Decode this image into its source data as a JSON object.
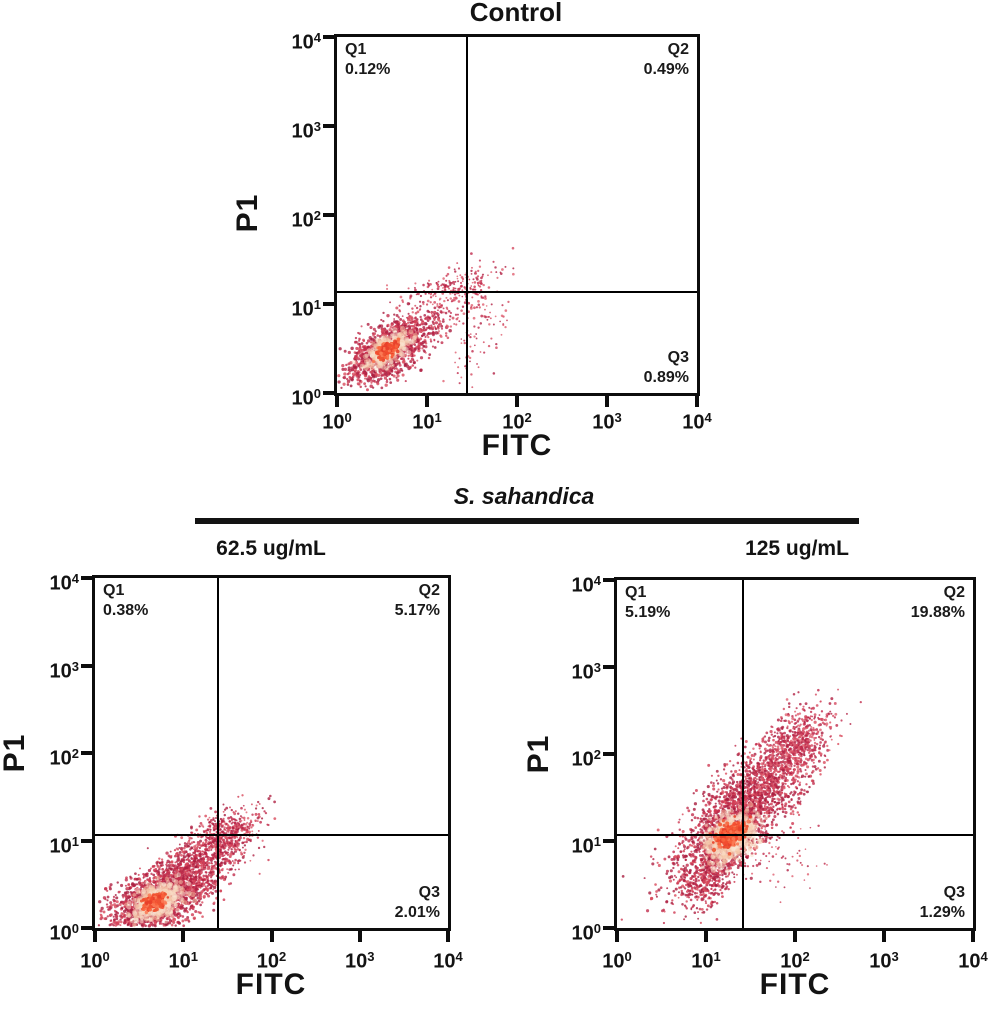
{
  "figure": {
    "group_label": "S. sahandica",
    "colors": {
      "background": "#ffffff",
      "axis": "#0d0d0d",
      "quadrant_line": "#000000",
      "palettes": {
        "dark": [
          "#b02345",
          "#c22e4e",
          "#cf3a53",
          "#a91d3f",
          "#d94b5c"
        ],
        "spray": [
          "#c12b4c",
          "#d54a60",
          "#b22144",
          "#e06070"
        ],
        "halo": [
          "#f7cfb2",
          "#f9ddc6",
          "#f3c1a2",
          "#fae6d4"
        ],
        "core": [
          "#f34a2e",
          "#f8633c",
          "#ee5533",
          "#fb7b55",
          "#e8402a"
        ]
      }
    }
  },
  "chart_data": [
    {
      "id": "control",
      "type": "scatter",
      "title": "Control",
      "xlabel": "FITC",
      "ylabel": "P1",
      "x_scale": "log",
      "y_scale": "log",
      "xlim_log": [
        0,
        4
      ],
      "ylim_log": [
        0,
        4
      ],
      "x_tick_exponents": [
        0,
        1,
        2,
        3,
        4
      ],
      "y_tick_exponents": [
        0,
        1,
        2,
        3,
        4
      ],
      "quadrant_lines": {
        "x_log": 1.44,
        "y_log": 1.13
      },
      "quadrants": [
        {
          "name": "Q1",
          "pct": "0.12%",
          "corner": "top-left"
        },
        {
          "name": "Q2",
          "pct": "0.49%",
          "corner": "top-right"
        },
        {
          "name": "Q3",
          "pct": "0.89%",
          "corner": "bottom-right"
        }
      ],
      "clusters": [
        {
          "palette": "dark",
          "cx": 0.56,
          "cy": 0.48,
          "sx": 0.27,
          "sy": 0.13,
          "angle": 33,
          "n": 1150,
          "r": 1.4
        },
        {
          "palette": "spray",
          "cx": 1.02,
          "cy": 0.8,
          "sx": 0.4,
          "sy": 0.15,
          "angle": 37,
          "n": 300,
          "r": 1.15
        },
        {
          "palette": "spray",
          "cx": 1.28,
          "cy": 1.2,
          "sx": 0.28,
          "sy": 0.08,
          "angle": 8,
          "n": 130,
          "r": 1.1
        },
        {
          "palette": "spray",
          "cx": 1.6,
          "cy": 0.72,
          "sx": 0.16,
          "sy": 0.35,
          "angle": -15,
          "n": 80,
          "r": 1.05
        },
        {
          "palette": "halo",
          "cx": 0.56,
          "cy": 0.48,
          "sx": 0.125,
          "sy": 0.06,
          "angle": 33,
          "n": 450,
          "r": 2.3
        },
        {
          "palette": "core",
          "cx": 0.555,
          "cy": 0.48,
          "sx": 0.06,
          "sy": 0.03,
          "angle": 33,
          "n": 240,
          "r": 1.7
        }
      ]
    },
    {
      "id": "dose-62-5",
      "type": "scatter",
      "title": "62.5 ug/mL",
      "xlabel": "FITC",
      "ylabel": "P1",
      "x_scale": "log",
      "y_scale": "log",
      "xlim_log": [
        0,
        4
      ],
      "ylim_log": [
        0,
        4
      ],
      "x_tick_exponents": [
        0,
        1,
        2,
        3,
        4
      ],
      "y_tick_exponents": [
        0,
        1,
        2,
        3,
        4
      ],
      "quadrant_lines": {
        "x_log": 1.39,
        "y_log": 1.06
      },
      "quadrants": [
        {
          "name": "Q1",
          "pct": "0.38%",
          "corner": "top-left"
        },
        {
          "name": "Q2",
          "pct": "5.17%",
          "corner": "top-right"
        },
        {
          "name": "Q3",
          "pct": "2.01%",
          "corner": "bottom-right"
        }
      ],
      "clusters": [
        {
          "palette": "dark",
          "cx": 0.72,
          "cy": 0.33,
          "sx": 0.31,
          "sy": 0.17,
          "angle": 28,
          "n": 1600,
          "r": 1.35
        },
        {
          "palette": "dark",
          "cx": 1.17,
          "cy": 0.74,
          "sx": 0.4,
          "sy": 0.15,
          "angle": 40,
          "n": 850,
          "r": 1.2
        },
        {
          "palette": "spray",
          "cx": 1.45,
          "cy": 1.06,
          "sx": 0.22,
          "sy": 0.12,
          "angle": 32,
          "n": 300,
          "r": 1.15
        },
        {
          "palette": "spray",
          "cx": 1.05,
          "cy": 0.45,
          "sx": 0.3,
          "sy": 0.12,
          "angle": 30,
          "n": 180,
          "r": 1.1
        },
        {
          "palette": "halo",
          "cx": 0.7,
          "cy": 0.31,
          "sx": 0.145,
          "sy": 0.08,
          "angle": 28,
          "n": 480,
          "r": 2.3
        },
        {
          "palette": "core",
          "cx": 0.68,
          "cy": 0.31,
          "sx": 0.065,
          "sy": 0.038,
          "angle": 28,
          "n": 250,
          "r": 1.7
        }
      ]
    },
    {
      "id": "dose-125",
      "type": "scatter",
      "title": "125 ug/mL",
      "xlabel": "FITC",
      "ylabel": "P1",
      "x_scale": "log",
      "y_scale": "log",
      "xlim_log": [
        0,
        4
      ],
      "ylim_log": [
        0,
        4
      ],
      "x_tick_exponents": [
        0,
        1,
        2,
        3,
        4
      ],
      "y_tick_exponents": [
        0,
        1,
        2,
        3,
        4
      ],
      "quadrant_lines": {
        "x_log": 1.42,
        "y_log": 1.07
      },
      "quadrants": [
        {
          "name": "Q1",
          "pct": "5.19%",
          "corner": "top-left"
        },
        {
          "name": "Q2",
          "pct": "19.88%",
          "corner": "top-right"
        },
        {
          "name": "Q3",
          "pct": "1.29%",
          "corner": "bottom-right"
        }
      ],
      "clusters": [
        {
          "palette": "dark",
          "cx": 1.38,
          "cy": 1.3,
          "sx": 0.5,
          "sy": 0.2,
          "angle": 48,
          "n": 2100,
          "r": 1.3
        },
        {
          "palette": "spray",
          "cx": 1.95,
          "cy": 2.05,
          "sx": 0.28,
          "sy": 0.15,
          "angle": 52,
          "n": 650,
          "r": 1.2
        },
        {
          "palette": "dark",
          "cx": 1.05,
          "cy": 0.6,
          "sx": 0.24,
          "sy": 0.13,
          "angle": 50,
          "n": 420,
          "r": 1.2
        },
        {
          "palette": "spray",
          "cx": 1.85,
          "cy": 0.8,
          "sx": 0.28,
          "sy": 0.22,
          "angle": 0,
          "n": 55,
          "r": 1.0
        },
        {
          "palette": "halo",
          "cx": 1.27,
          "cy": 1.05,
          "sx": 0.165,
          "sy": 0.105,
          "angle": 40,
          "n": 600,
          "r": 2.3
        },
        {
          "palette": "core",
          "cx": 1.27,
          "cy": 1.07,
          "sx": 0.085,
          "sy": 0.055,
          "angle": 40,
          "n": 280,
          "r": 1.8
        }
      ]
    }
  ]
}
